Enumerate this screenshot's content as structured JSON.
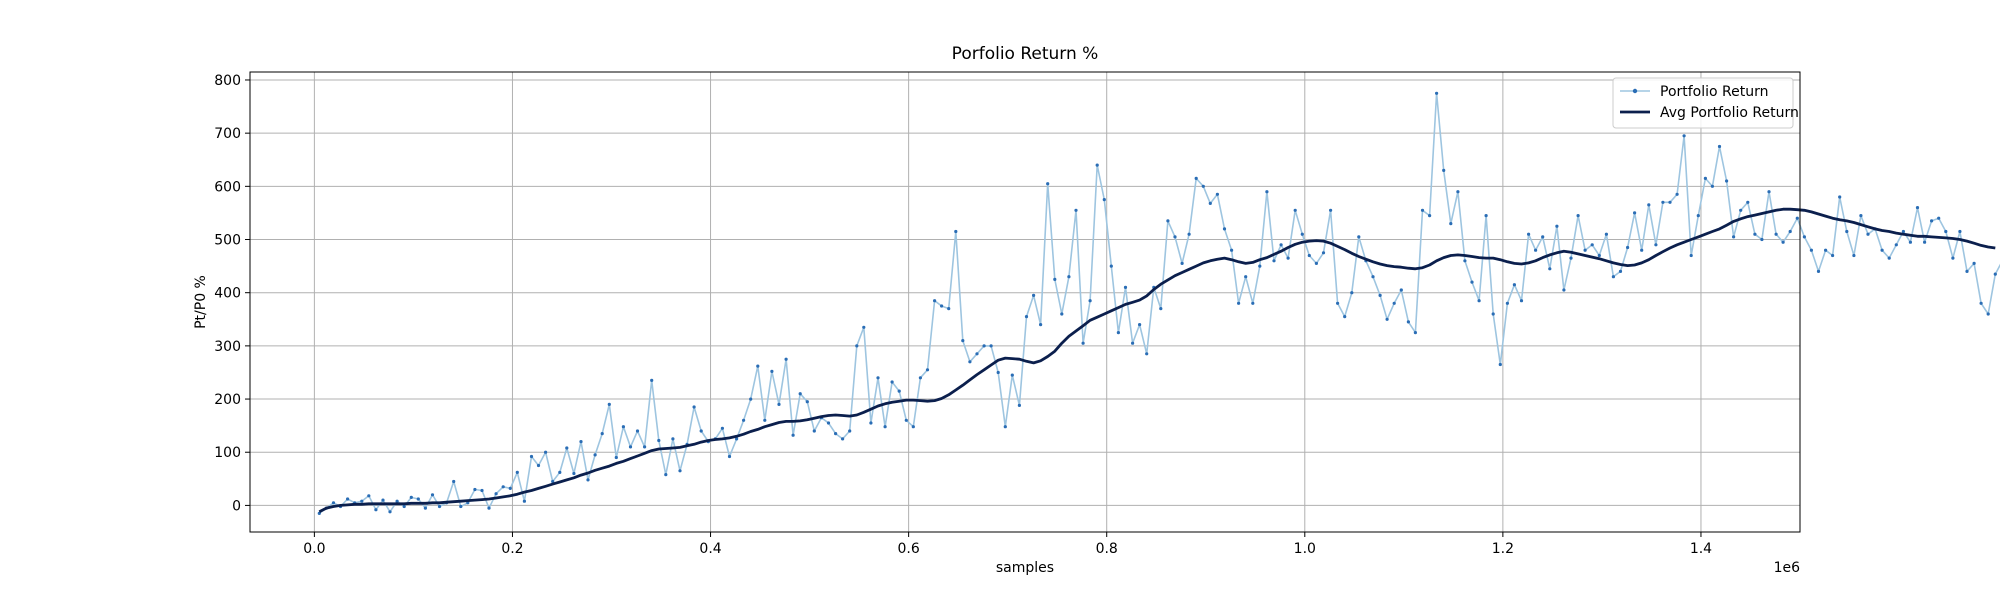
{
  "chart_data": {
    "type": "line",
    "title": "Porfolio Return %",
    "xlabel": "samples",
    "ylabel": "Pt/P0 %",
    "x_offset_text": "1e6",
    "xlim": [
      -0.065,
      1.5
    ],
    "ylim": [
      -50,
      815
    ],
    "x_ticks": [
      0.0,
      0.2,
      0.4,
      0.6,
      0.8,
      1.0,
      1.2,
      1.4
    ],
    "x_tick_labels": [
      "0.0",
      "0.2",
      "0.4",
      "0.6",
      "0.8",
      "1.0",
      "1.2",
      "1.4"
    ],
    "y_ticks": [
      0,
      100,
      200,
      300,
      400,
      500,
      600,
      700,
      800
    ],
    "y_tick_labels": [
      "0",
      "100",
      "200",
      "300",
      "400",
      "500",
      "600",
      "700",
      "800"
    ],
    "grid": true,
    "legend_position": "top-right",
    "x_start": 0.005,
    "x_step": 0.00714,
    "series": [
      {
        "name": "Portfolio Return",
        "color": "#9ec5e0",
        "marker_color": "#2a6db5",
        "style": "line-with-markers",
        "values": [
          -15,
          -5,
          5,
          -2,
          12,
          5,
          8,
          18,
          -8,
          10,
          -12,
          8,
          -2,
          15,
          12,
          -5,
          20,
          -2,
          5,
          45,
          -2,
          5,
          30,
          28,
          -5,
          22,
          35,
          32,
          62,
          8,
          92,
          75,
          100,
          45,
          62,
          108,
          60,
          120,
          48,
          95,
          135,
          190,
          90,
          148,
          110,
          140,
          110,
          235,
          122,
          58,
          125,
          65,
          115,
          185,
          140,
          120,
          125,
          145,
          92,
          125,
          160,
          200,
          262,
          160,
          252,
          190,
          275,
          132,
          210,
          195,
          140,
          165,
          155,
          135,
          125,
          140,
          300,
          335,
          155,
          240,
          148,
          232,
          215,
          160,
          148,
          240,
          255,
          385,
          375,
          370,
          515,
          310,
          270,
          285,
          300,
          300,
          250,
          148,
          245,
          188,
          355,
          395,
          340,
          605,
          425,
          360,
          430,
          555,
          305,
          385,
          640,
          575,
          450,
          325,
          410,
          305,
          340,
          285,
          410,
          370,
          535,
          505,
          455,
          510,
          615,
          600,
          568,
          585,
          520,
          480,
          380,
          430,
          380,
          450,
          590,
          460,
          490,
          465,
          555,
          510,
          470,
          455,
          475,
          555,
          380,
          355,
          400,
          505,
          460,
          430,
          395,
          350,
          380,
          405,
          345,
          325,
          555,
          545,
          775,
          630,
          530,
          590,
          460,
          420,
          385,
          545,
          360,
          265,
          380,
          415,
          385,
          510,
          480,
          505,
          445,
          525,
          405,
          465,
          545,
          480,
          490,
          470,
          510,
          430,
          440,
          485,
          550,
          480,
          565,
          490,
          570,
          570,
          585,
          695,
          470,
          545,
          615,
          600,
          675,
          610,
          505,
          555,
          570,
          510,
          500,
          590,
          510,
          495,
          515,
          540,
          505,
          480,
          440,
          480,
          470,
          580,
          515,
          470,
          545,
          510,
          520,
          480,
          465,
          490,
          515,
          495,
          560,
          495,
          535,
          540,
          515,
          465,
          515,
          440,
          455,
          380,
          360,
          435,
          460,
          465
        ]
      },
      {
        "name": "Avg Portfolio Return",
        "color": "#0b1f4d",
        "style": "line",
        "values": [
          -12,
          -5,
          -2,
          0,
          1,
          2,
          2,
          3,
          3,
          3,
          3,
          3,
          3,
          4,
          4,
          4,
          5,
          5,
          6,
          7,
          8,
          9,
          10,
          11,
          12,
          14,
          16,
          18,
          21,
          25,
          28,
          32,
          36,
          40,
          44,
          48,
          52,
          57,
          61,
          66,
          70,
          74,
          79,
          83,
          88,
          93,
          98,
          103,
          106,
          107,
          108,
          109,
          112,
          115,
          119,
          122,
          124,
          125,
          127,
          130,
          134,
          139,
          143,
          148,
          152,
          156,
          158,
          158,
          159,
          161,
          164,
          167,
          169,
          170,
          169,
          168,
          170,
          175,
          181,
          187,
          191,
          194,
          196,
          198,
          198,
          197,
          196,
          197,
          201,
          208,
          217,
          226,
          236,
          246,
          255,
          264,
          273,
          277,
          276,
          275,
          271,
          268,
          272,
          280,
          290,
          305,
          318,
          328,
          338,
          348,
          354,
          360,
          366,
          372,
          378,
          382,
          386,
          394,
          406,
          416,
          424,
          432,
          438,
          444,
          450,
          456,
          460,
          463,
          465,
          462,
          458,
          455,
          457,
          462,
          466,
          472,
          478,
          485,
          491,
          495,
          497,
          498,
          497,
          493,
          487,
          481,
          474,
          468,
          463,
          458,
          454,
          451,
          449,
          448,
          446,
          445,
          447,
          452,
          460,
          466,
          470,
          471,
          470,
          468,
          466,
          465,
          465,
          462,
          458,
          455,
          454,
          456,
          460,
          466,
          471,
          475,
          478,
          476,
          473,
          470,
          467,
          464,
          460,
          456,
          453,
          451,
          452,
          456,
          462,
          470,
          477,
          484,
          490,
          495,
          500,
          505,
          510,
          515,
          520,
          527,
          534,
          539,
          543,
          546,
          549,
          552,
          555,
          557,
          557,
          556,
          555,
          552,
          548,
          544,
          540,
          537,
          535,
          532,
          528,
          524,
          520,
          517,
          515,
          512,
          510,
          508,
          506,
          506,
          505,
          504,
          503,
          502,
          500,
          497,
          493,
          489,
          486,
          484
        ]
      }
    ]
  }
}
